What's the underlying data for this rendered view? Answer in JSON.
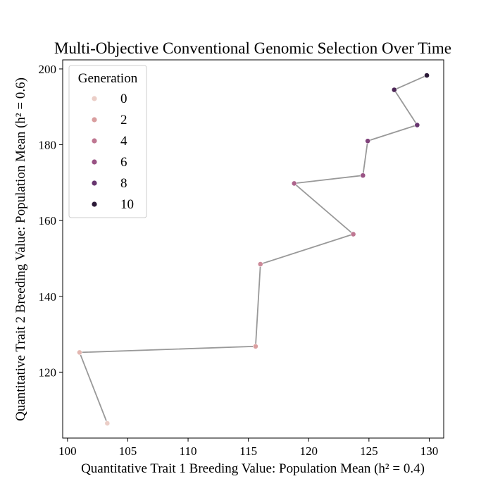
{
  "chart_data": {
    "type": "scatter",
    "title": "Multi-Objective Conventional Genomic Selection Over Time",
    "xlabel": "Quantitative Trait 1 Breeding Value: Population Mean (h² = 0.4)",
    "ylabel": "Quantitative Trait 2 Breeding Value: Population Mean (h² = 0.6)",
    "xlim": [
      99.6,
      131.2
    ],
    "ylim": [
      102.6,
      202.4
    ],
    "xticks": [
      100,
      105,
      110,
      115,
      120,
      125,
      130
    ],
    "yticks": [
      120,
      140,
      160,
      180,
      200
    ],
    "grid": false,
    "connecting_line": true,
    "legend": {
      "title": "Generation",
      "placement": "top-left",
      "entries": [
        {
          "label": "0",
          "color": "#ebcec7"
        },
        {
          "label": "2",
          "color": "#d99e9f"
        },
        {
          "label": "4",
          "color": "#bf7792"
        },
        {
          "label": "6",
          "color": "#995284"
        },
        {
          "label": "8",
          "color": "#67356f"
        },
        {
          "label": "10",
          "color": "#2b1937"
        }
      ]
    },
    "points": [
      {
        "generation": 0,
        "x": 103.3,
        "y": 106.5,
        "color": "#ebcec7"
      },
      {
        "generation": 1,
        "x": 101.0,
        "y": 125.2,
        "color": "#e3b7b1"
      },
      {
        "generation": 2,
        "x": 115.6,
        "y": 126.8,
        "color": "#d99e9f"
      },
      {
        "generation": 3,
        "x": 116.0,
        "y": 148.5,
        "color": "#cc8a99"
      },
      {
        "generation": 4,
        "x": 123.7,
        "y": 156.4,
        "color": "#bf7792"
      },
      {
        "generation": 5,
        "x": 118.8,
        "y": 169.8,
        "color": "#ad648c"
      },
      {
        "generation": 6,
        "x": 124.5,
        "y": 171.9,
        "color": "#995284"
      },
      {
        "generation": 7,
        "x": 124.9,
        "y": 181.0,
        "color": "#80437b"
      },
      {
        "generation": 8,
        "x": 129.0,
        "y": 185.2,
        "color": "#67356f"
      },
      {
        "generation": 9,
        "x": 127.1,
        "y": 194.5,
        "color": "#4c2756"
      },
      {
        "generation": 10,
        "x": 129.8,
        "y": 198.3,
        "color": "#2b1937"
      }
    ],
    "line_color": "#999999"
  }
}
